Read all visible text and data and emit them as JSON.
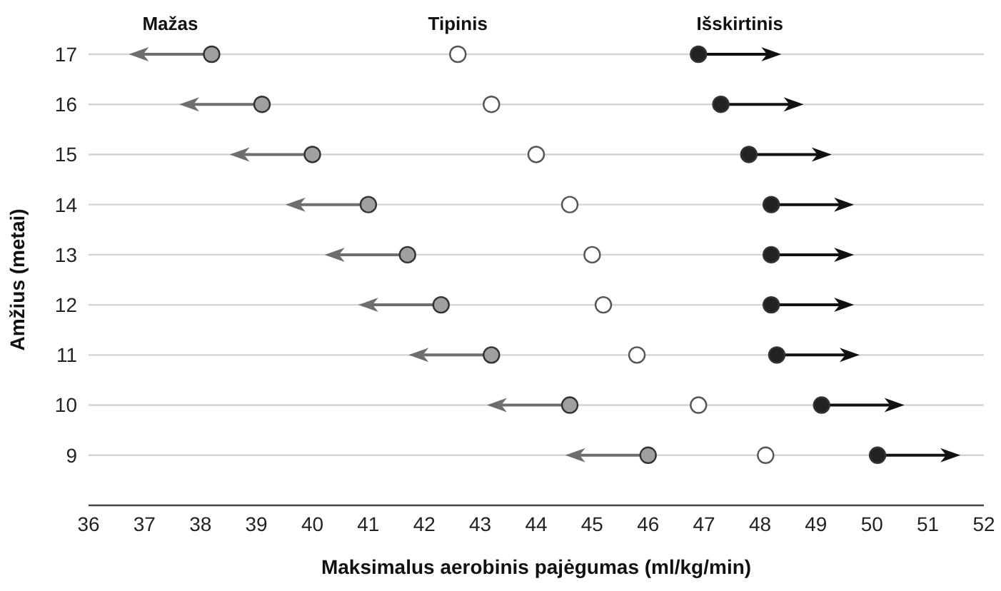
{
  "chart_data": {
    "type": "scatter",
    "xlabel": "Maksimalus aerobinis pajėgumas (ml/kg/min)",
    "ylabel": "Amžius (metai)",
    "xlim": [
      36,
      52
    ],
    "xticks": [
      36,
      37,
      38,
      39,
      40,
      41,
      42,
      43,
      44,
      45,
      46,
      47,
      48,
      49,
      50,
      51,
      52
    ],
    "ylim": [
      8,
      17
    ],
    "yticks": [
      9,
      10,
      11,
      12,
      13,
      14,
      15,
      16,
      17
    ],
    "grid": "y",
    "marker": "circle",
    "series": [
      {
        "name": "Mažas",
        "color": "#a0a0a0",
        "x": [
          38.2,
          39.1,
          40.0,
          41.0,
          41.7,
          42.3,
          43.2,
          44.6,
          46.0
        ],
        "values": [
          17,
          16,
          15,
          14,
          13,
          12,
          11,
          10,
          9
        ]
      },
      {
        "name": "Tipinis",
        "color": "#ffffff",
        "x": [
          42.6,
          43.2,
          44.0,
          44.6,
          45.0,
          45.2,
          45.8,
          46.9,
          48.1
        ],
        "values": [
          17,
          16,
          15,
          14,
          13,
          12,
          11,
          10,
          9
        ]
      },
      {
        "name": "Išskirtinis",
        "color": "#222222",
        "x": [
          46.9,
          47.3,
          47.8,
          48.2,
          48.2,
          48.2,
          48.3,
          49.1,
          50.1
        ],
        "values": [
          17,
          16,
          15,
          14,
          13,
          12,
          11,
          10,
          9
        ]
      }
    ]
  }
}
